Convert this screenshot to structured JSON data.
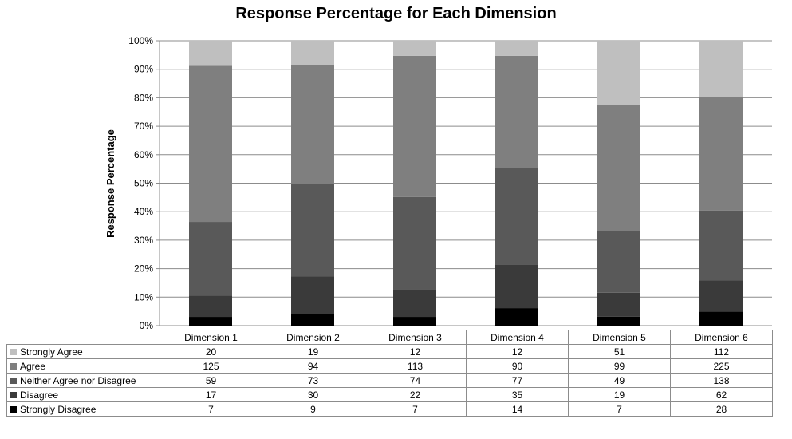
{
  "chart_data": {
    "type": "bar",
    "stacked": true,
    "stack_mode": "percent",
    "title": "Response Percentage for Each Dimension",
    "xlabel": "",
    "ylabel": "Response Percentage",
    "ylim": [
      0,
      100
    ],
    "yticks": [
      "0%",
      "10%",
      "20%",
      "30%",
      "40%",
      "50%",
      "60%",
      "70%",
      "80%",
      "90%",
      "100%"
    ],
    "grid": true,
    "legend": "data table below chart",
    "categories": [
      "Dimension 1",
      "Dimension 2",
      "Dimension 3",
      "Dimension 4",
      "Dimension 5",
      "Dimension 6"
    ],
    "series": [
      {
        "name": "Strongly Agree",
        "color": "#bfbfbf",
        "values": [
          20,
          19,
          12,
          12,
          51,
          112
        ]
      },
      {
        "name": "Agree",
        "color": "#7f7f7f",
        "values": [
          125,
          94,
          113,
          90,
          99,
          225
        ]
      },
      {
        "name": "Neither Agree nor Disagree",
        "color": "#595959",
        "values": [
          59,
          73,
          74,
          77,
          49,
          138
        ]
      },
      {
        "name": "Disagree",
        "color": "#3a3a3a",
        "values": [
          17,
          30,
          22,
          35,
          19,
          62
        ]
      },
      {
        "name": "Strongly Disagree",
        "color": "#000000",
        "values": [
          7,
          9,
          7,
          14,
          7,
          28
        ]
      }
    ]
  }
}
